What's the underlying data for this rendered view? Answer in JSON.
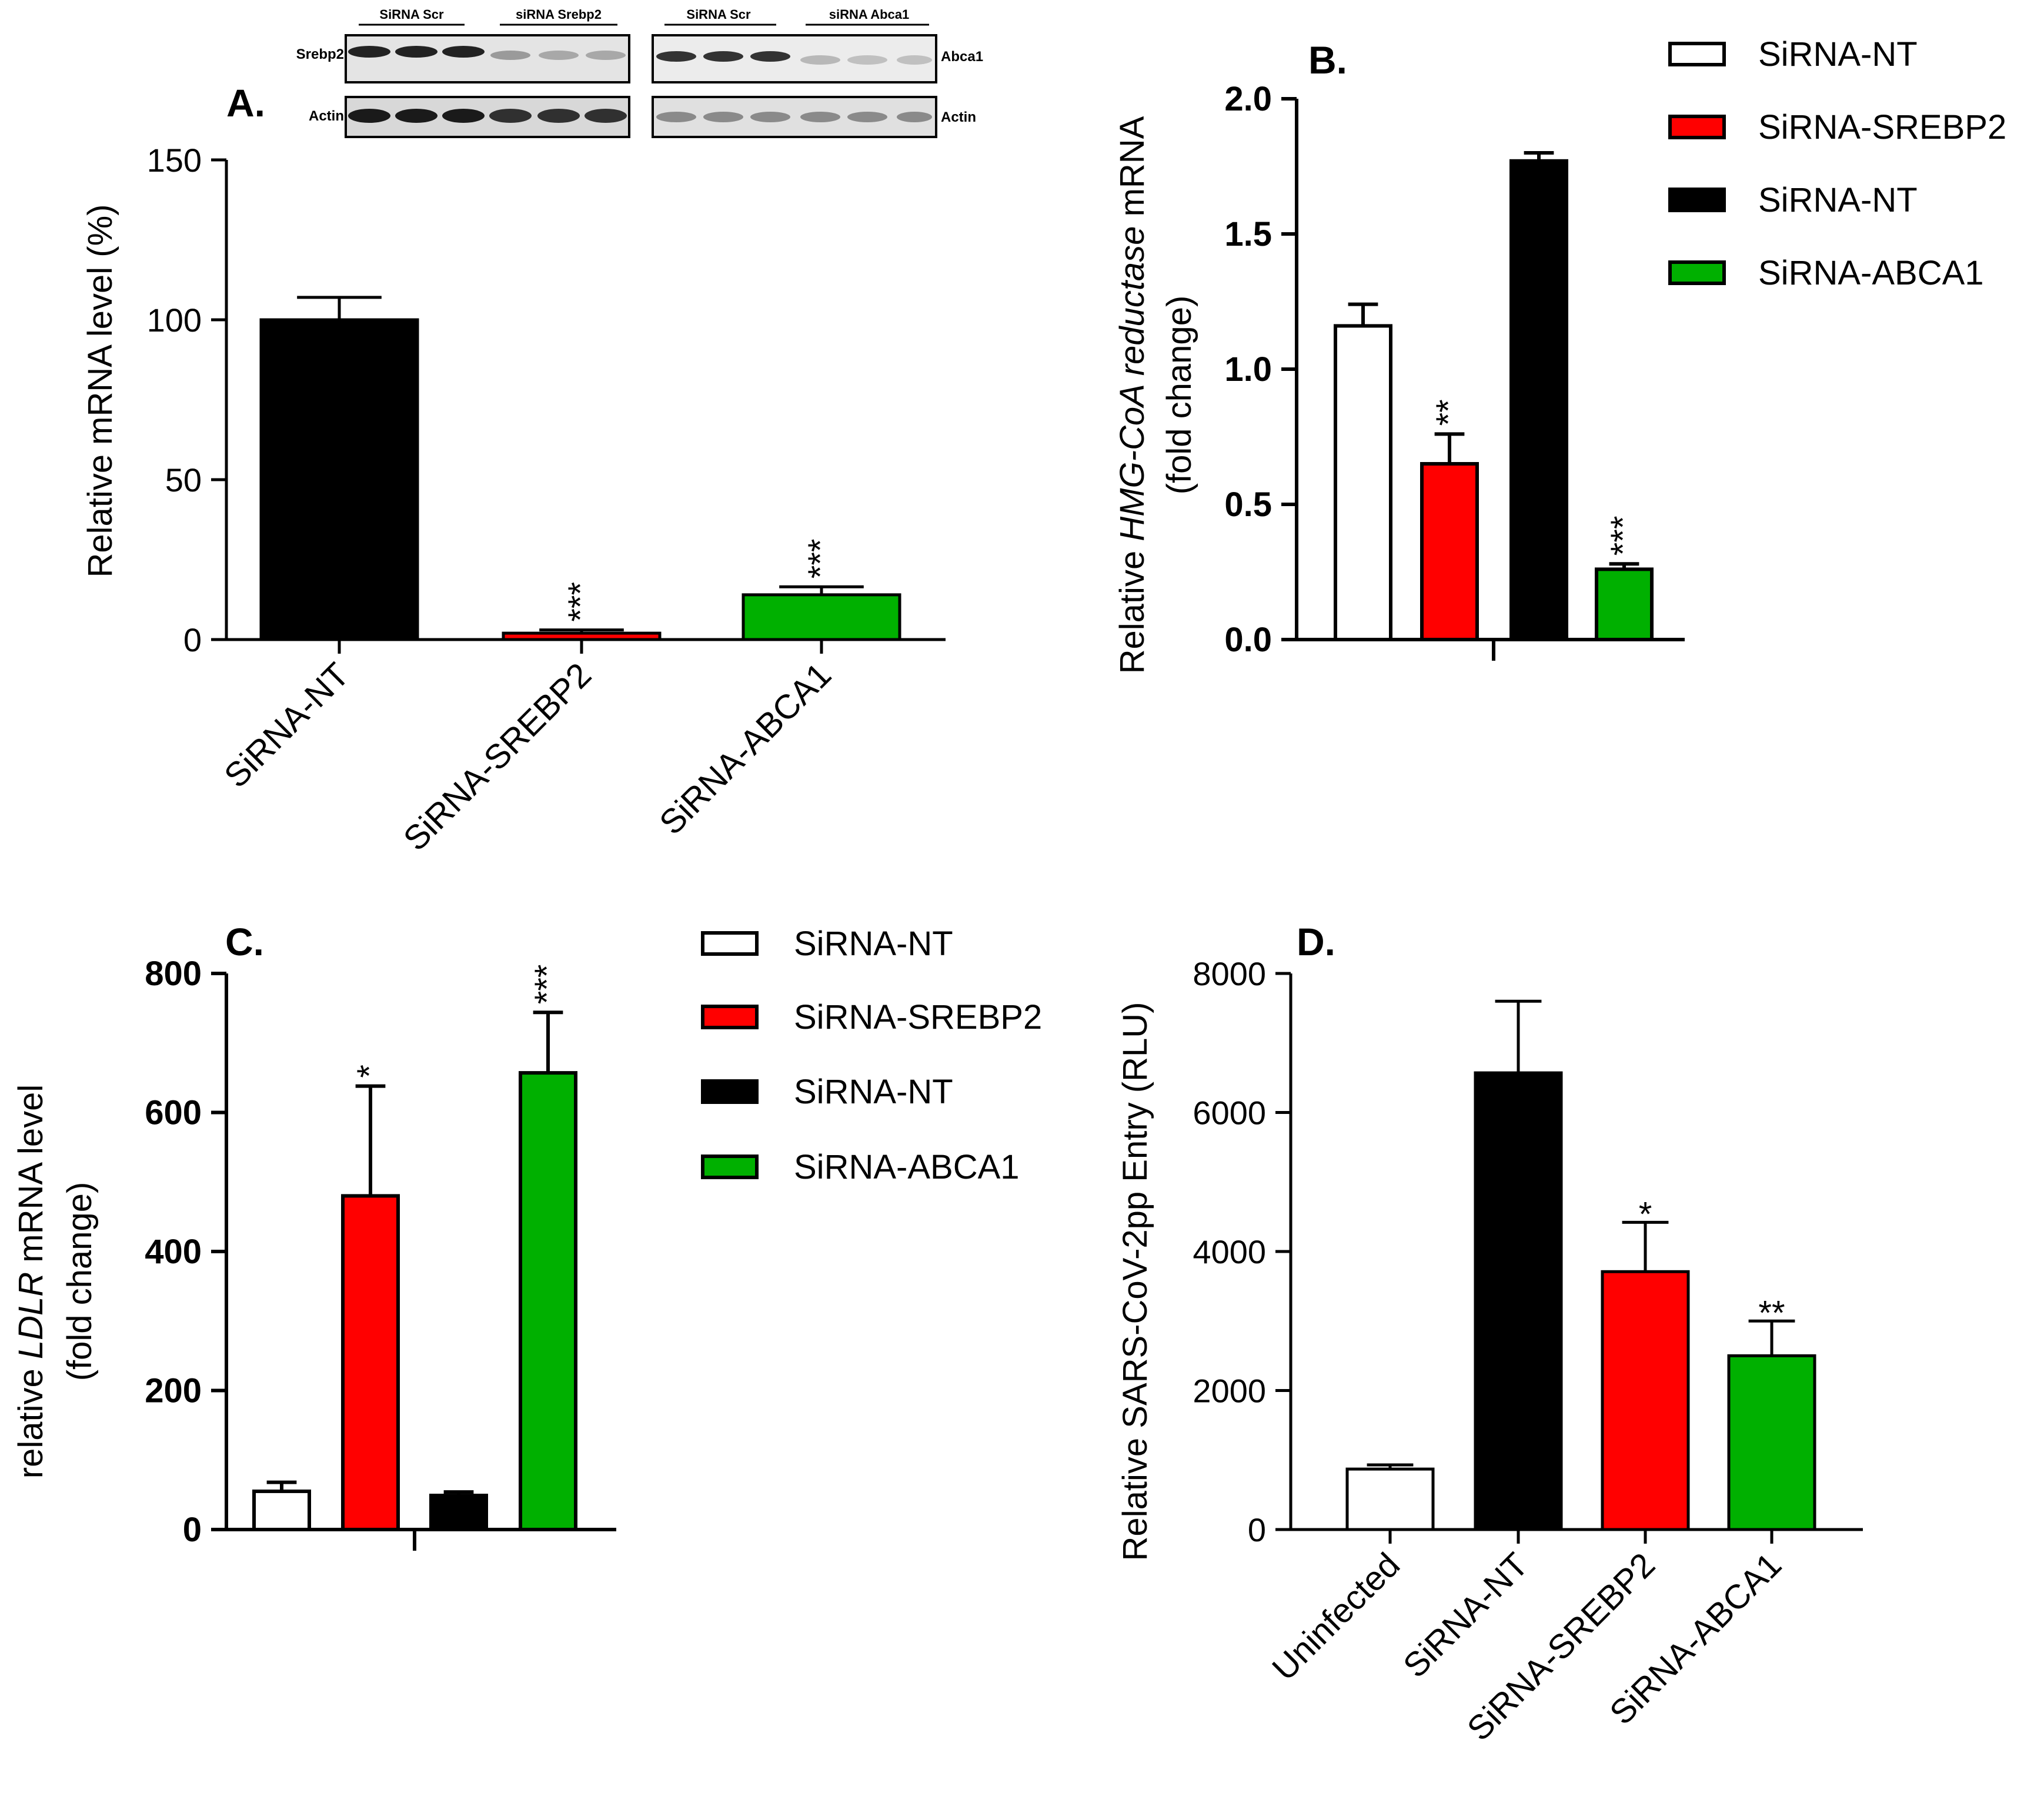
{
  "colors": {
    "white": "#ffffff",
    "red": "#ff0000",
    "black": "#000000",
    "green": "#00b000"
  },
  "blot": {
    "top_labels": [
      "SiRNA Scr",
      "siRNA Srebp2",
      "SiRNA Scr",
      "siRNA Abca1"
    ],
    "row_labels_left": [
      "Srebp2",
      "Actin"
    ],
    "row_labels_right": [
      "Abca1",
      "Actin"
    ]
  },
  "chart_data": [
    {
      "id": "A",
      "panel_label": "A.",
      "type": "bar",
      "ylabel": "Relative mRNA level  (%)",
      "ylim": [
        0,
        150
      ],
      "yticks": [
        "0",
        "50",
        "100",
        "150"
      ],
      "categories": [
        "SiRNA-NT",
        "SiRNA-SREBP2",
        "SiRNA-ABCA1"
      ],
      "values": [
        100,
        2,
        14
      ],
      "errors": [
        7,
        1,
        2.5
      ],
      "colors": [
        "black",
        "red",
        "green"
      ],
      "significance": [
        "",
        "***",
        "***"
      ]
    },
    {
      "id": "B",
      "panel_label": "B.",
      "type": "bar",
      "ylabel_parts": [
        "Relative ",
        "HMG-CoA reductase",
        " mRNA"
      ],
      "ylabel2": "(fold change)",
      "ylim": [
        0,
        2.0
      ],
      "yticks": [
        "0.0",
        "0.5",
        "1.0",
        "1.5",
        "2.0"
      ],
      "series": [
        {
          "name": "SiRNA-NT",
          "value": 1.16,
          "error": 0.08,
          "color": "white",
          "sig": ""
        },
        {
          "name": "SiRNA-SREBP2",
          "value": 0.65,
          "error": 0.11,
          "color": "red",
          "sig": "**"
        },
        {
          "name": "SiRNA-NT",
          "value": 1.77,
          "error": 0.03,
          "color": "black",
          "sig": ""
        },
        {
          "name": "SiRNA-ABCA1",
          "value": 0.26,
          "error": 0.02,
          "color": "green",
          "sig": "***"
        }
      ]
    },
    {
      "id": "C",
      "panel_label": "C.",
      "type": "bar",
      "ylabel_parts": [
        "relative ",
        "LDLR",
        " mRNA level"
      ],
      "ylabel2": "(fold change)",
      "ylim": [
        0,
        800
      ],
      "yticks": [
        "0",
        "200",
        "400",
        "600",
        "800"
      ],
      "series": [
        {
          "name": "SiRNA-NT",
          "value": 55,
          "error": 13,
          "color": "white",
          "sig": ""
        },
        {
          "name": "SiRNA-SREBP2",
          "value": 480,
          "error": 158,
          "color": "red",
          "sig": "*"
        },
        {
          "name": "SiRNA-NT",
          "value": 49,
          "error": 5,
          "color": "black",
          "sig": ""
        },
        {
          "name": "SiRNA-ABCA1",
          "value": 657,
          "error": 87,
          "color": "green",
          "sig": "***"
        }
      ]
    },
    {
      "id": "D",
      "panel_label": "D.",
      "type": "bar",
      "ylabel": "Relative SARS-CoV-2pp Entry (RLU)",
      "ylim": [
        0,
        8000
      ],
      "yticks": [
        "0",
        "2000",
        "4000",
        "6000",
        "8000"
      ],
      "categories": [
        "Uninfected",
        "SiRNA-NT",
        "SiRNA-SREBP2",
        "SiRNA-ABCA1"
      ],
      "values": [
        870,
        6570,
        3710,
        2500
      ],
      "errors": [
        60,
        1030,
        710,
        500
      ],
      "colors": [
        "white",
        "black",
        "red",
        "green"
      ],
      "significance": [
        "",
        "",
        "*",
        "**"
      ]
    }
  ]
}
